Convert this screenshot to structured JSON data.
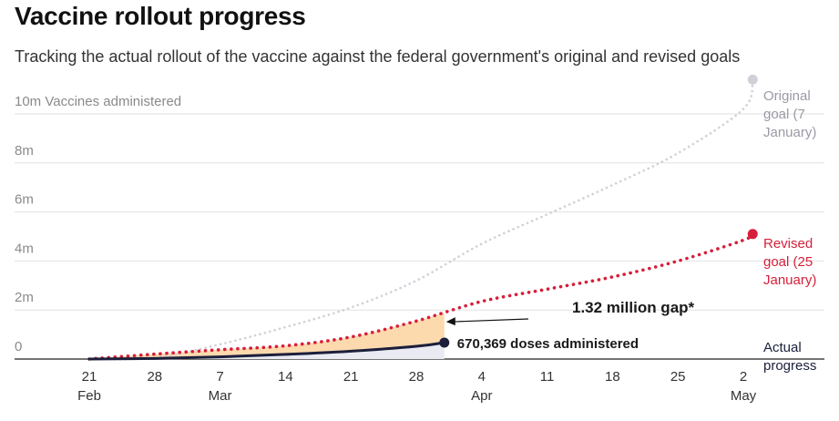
{
  "header": {
    "title": "Vaccine rollout progress",
    "subtitle": "Tracking the actual rollout of the vaccine against the federal government's original and revised goals"
  },
  "chart_data": {
    "type": "line",
    "ylim": [
      0,
      10000000
    ],
    "y_ticks": [
      {
        "value": 0,
        "label": "0"
      },
      {
        "value": 2000000,
        "label": "2m"
      },
      {
        "value": 4000000,
        "label": "4m"
      },
      {
        "value": 6000000,
        "label": "6m"
      },
      {
        "value": 8000000,
        "label": "8m"
      },
      {
        "value": 10000000,
        "label": "10m Vaccines administered"
      }
    ],
    "x_ticks": [
      {
        "date": "2021-02-21",
        "day": "21",
        "month": "Feb"
      },
      {
        "date": "2021-02-28",
        "day": "28",
        "month": ""
      },
      {
        "date": "2021-03-07",
        "day": "7",
        "month": "Mar"
      },
      {
        "date": "2021-03-14",
        "day": "14",
        "month": ""
      },
      {
        "date": "2021-03-21",
        "day": "21",
        "month": ""
      },
      {
        "date": "2021-03-28",
        "day": "28",
        "month": ""
      },
      {
        "date": "2021-04-04",
        "day": "4",
        "month": "Apr"
      },
      {
        "date": "2021-04-11",
        "day": "11",
        "month": ""
      },
      {
        "date": "2021-04-18",
        "day": "18",
        "month": ""
      },
      {
        "date": "2021-04-25",
        "day": "25",
        "month": ""
      },
      {
        "date": "2021-05-02",
        "day": "2",
        "month": "May"
      }
    ],
    "series": [
      {
        "name": "Original goal (7 January)",
        "color": "#d0d0d8",
        "style": "dotted",
        "end_marker": true,
        "points": [
          {
            "x": "2021-02-21",
            "y": 0
          },
          {
            "x": "2021-02-28",
            "y": 50000
          },
          {
            "x": "2021-03-07",
            "y": 600000
          },
          {
            "x": "2021-03-14",
            "y": 1300000
          },
          {
            "x": "2021-03-21",
            "y": 2100000
          },
          {
            "x": "2021-03-28",
            "y": 3200000
          },
          {
            "x": "2021-04-04",
            "y": 4700000
          },
          {
            "x": "2021-04-11",
            "y": 5900000
          },
          {
            "x": "2021-04-18",
            "y": 7100000
          },
          {
            "x": "2021-04-25",
            "y": 8400000
          },
          {
            "x": "2021-05-02",
            "y": 10200000
          },
          {
            "x": "2021-05-03",
            "y": 11400000
          }
        ]
      },
      {
        "name": "Revised goal (25 January)",
        "color": "#d61f3a",
        "style": "dotted",
        "end_marker": true,
        "points": [
          {
            "x": "2021-02-21",
            "y": 0
          },
          {
            "x": "2021-02-28",
            "y": 200000
          },
          {
            "x": "2021-03-07",
            "y": 380000
          },
          {
            "x": "2021-03-14",
            "y": 540000
          },
          {
            "x": "2021-03-21",
            "y": 900000
          },
          {
            "x": "2021-03-28",
            "y": 1550000
          },
          {
            "x": "2021-04-04",
            "y": 2350000
          },
          {
            "x": "2021-04-11",
            "y": 2850000
          },
          {
            "x": "2021-04-18",
            "y": 3350000
          },
          {
            "x": "2021-04-25",
            "y": 4000000
          },
          {
            "x": "2021-05-02",
            "y": 4850000
          },
          {
            "x": "2021-05-03",
            "y": 5100000
          }
        ]
      },
      {
        "name": "Actual progress",
        "color": "#1b1f3b",
        "style": "solid",
        "end_marker": true,
        "points": [
          {
            "x": "2021-02-21",
            "y": 0
          },
          {
            "x": "2021-02-28",
            "y": 25000
          },
          {
            "x": "2021-03-07",
            "y": 90000
          },
          {
            "x": "2021-03-14",
            "y": 190000
          },
          {
            "x": "2021-03-21",
            "y": 320000
          },
          {
            "x": "2021-03-28",
            "y": 520000
          },
          {
            "x": "2021-03-31",
            "y": 670369
          }
        ]
      }
    ],
    "gap_fill_color": "#fdd9ae",
    "annotations": {
      "gap": "1.32 million gap*",
      "actual": "670,369 doses administered"
    }
  },
  "legend": {
    "original": [
      "Original",
      "goal (7",
      "January)"
    ],
    "revised": [
      "Revised",
      "goal (25",
      "January)"
    ],
    "actual": [
      "Actual",
      "progress"
    ]
  }
}
